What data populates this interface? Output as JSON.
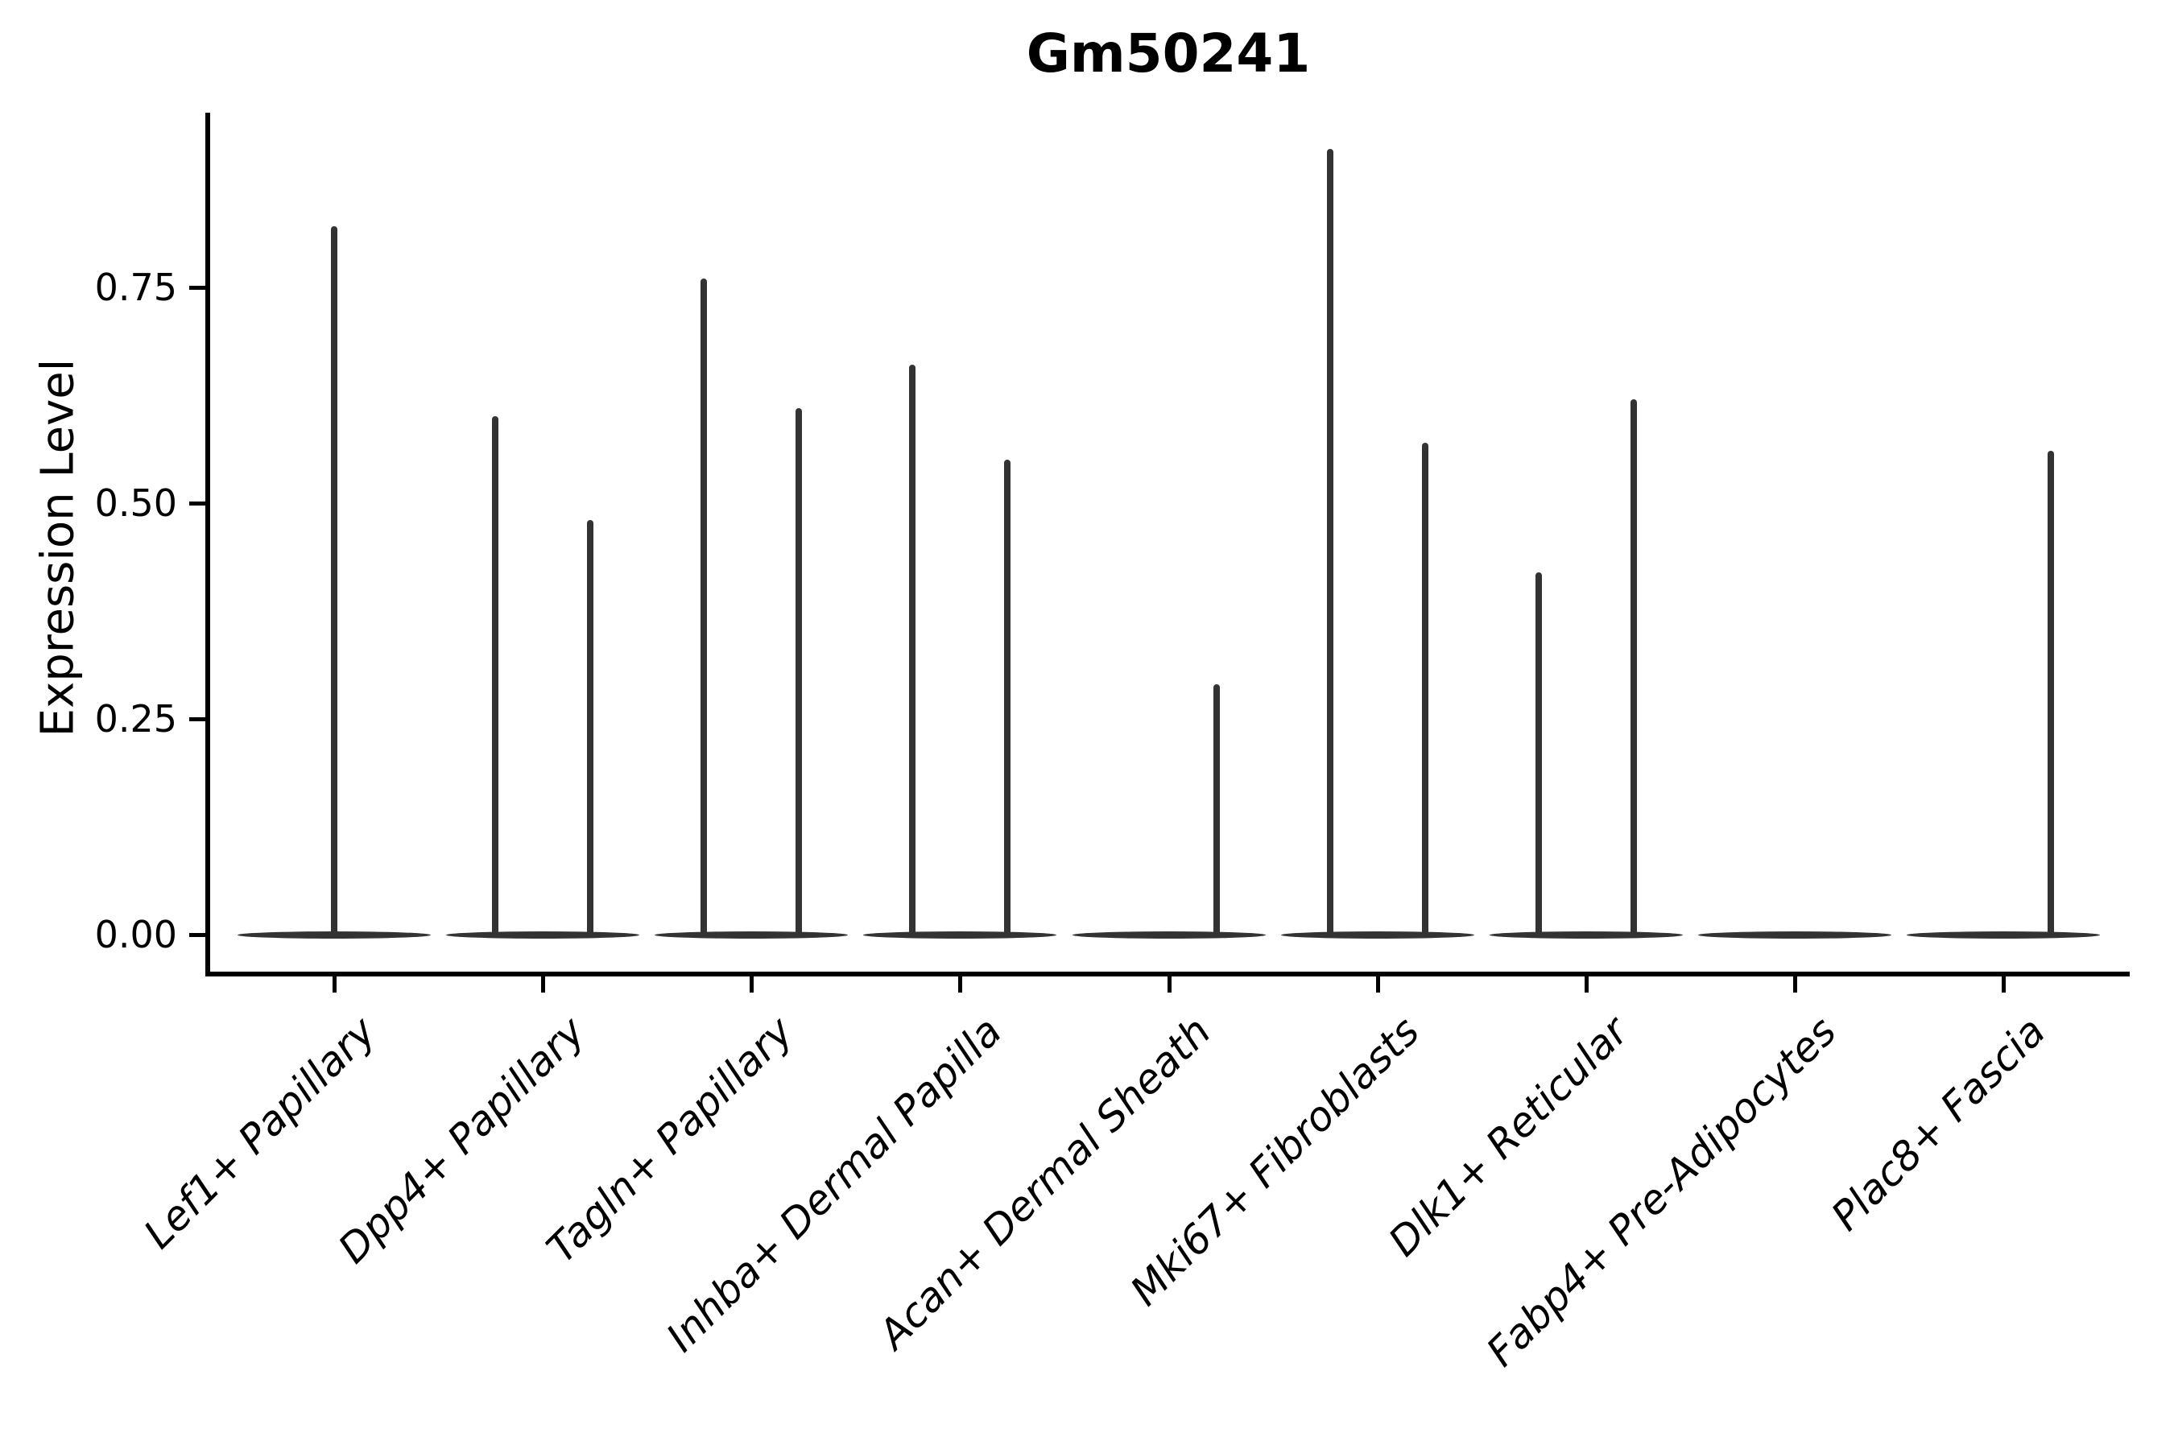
{
  "chart_data": {
    "type": "violin",
    "title": "Gm50241",
    "ylabel": "Expression Level",
    "xlabel": "",
    "yticks": [
      "0.00",
      "0.25",
      "0.50",
      "0.75"
    ],
    "ytick_values": [
      0.0,
      0.25,
      0.5,
      0.75
    ],
    "ylim": [
      -0.04,
      0.95
    ],
    "grid": false,
    "legend": "none",
    "colors": {
      "violin_ink": "#333333",
      "axis": "#000000",
      "text": "#000000",
      "background": "#ffffff"
    },
    "categories": [
      "Lef1+ Papillary",
      "Dpp4+ Papillary",
      "Tagln+ Papillary",
      "Inhba+ Dermal Papilla",
      "Acan+ Dermal Sheath",
      "Mki67+ Fibroblasts",
      "Dlk1+ Reticular",
      "Fabp4+ Pre-Adipocytes",
      "Plac8+ Fascia"
    ],
    "groups": [
      {
        "category": "Lef1+ Papillary",
        "baseline_at": 0,
        "violins": [
          {
            "position": "center",
            "max_expression": 0.82
          }
        ]
      },
      {
        "category": "Dpp4+ Papillary",
        "baseline_at": 0,
        "violins": [
          {
            "position": "left",
            "max_expression": 0.6
          },
          {
            "position": "right",
            "max_expression": 0.48
          }
        ]
      },
      {
        "category": "Tagln+ Papillary",
        "baseline_at": 0,
        "violins": [
          {
            "position": "left",
            "max_expression": 0.76
          },
          {
            "position": "right",
            "max_expression": 0.61
          }
        ]
      },
      {
        "category": "Inhba+ Dermal Papilla",
        "baseline_at": 0,
        "violins": [
          {
            "position": "left",
            "max_expression": 0.66
          },
          {
            "position": "right",
            "max_expression": 0.55
          }
        ]
      },
      {
        "category": "Acan+ Dermal Sheath",
        "baseline_at": 0,
        "violins": [
          {
            "position": "right",
            "max_expression": 0.29
          }
        ]
      },
      {
        "category": "Mki67+ Fibroblasts",
        "baseline_at": 0,
        "violins": [
          {
            "position": "left",
            "max_expression": 0.91
          },
          {
            "position": "right",
            "max_expression": 0.57
          }
        ]
      },
      {
        "category": "Dlk1+ Reticular",
        "baseline_at": 0,
        "violins": [
          {
            "position": "left",
            "max_expression": 0.42
          },
          {
            "position": "right",
            "max_expression": 0.62
          }
        ]
      },
      {
        "category": "Fabp4+ Pre-Adipocytes",
        "baseline_at": 0,
        "violins": []
      },
      {
        "category": "Plac8+ Fascia",
        "baseline_at": 0,
        "violins": [
          {
            "position": "right",
            "max_expression": 0.56
          }
        ]
      }
    ]
  }
}
